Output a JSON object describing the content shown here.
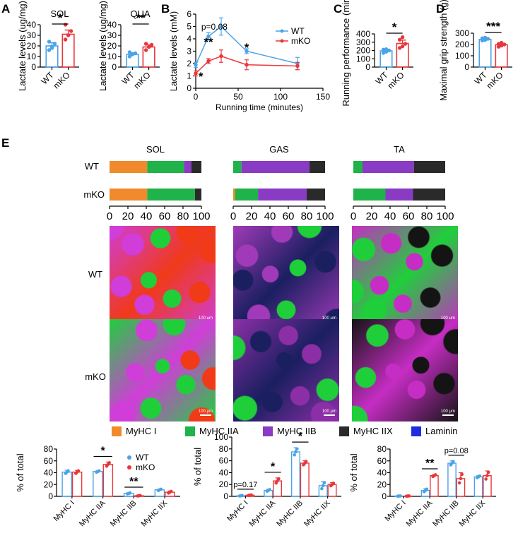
{
  "colors": {
    "wt": "#4aa3e8",
    "mko": "#e8373a",
    "myhc_i": "#f08a2c",
    "myhc_iia": "#1fb34a",
    "myhc_iib": "#8a3bc4",
    "myhc_iix": "#2a2a2a",
    "laminin": "#1f2de0"
  },
  "panel_labels": [
    "A",
    "B",
    "C",
    "D",
    "E"
  ],
  "legend_b": {
    "wt": "WT",
    "mko": "mKO"
  },
  "fiber_legend": [
    "MyHC I",
    "MyHC IIA",
    "MyHC IIB",
    "MyHC IIX",
    "Laminin"
  ],
  "muscle_titles": [
    "SOL",
    "GAS",
    "TA"
  ],
  "image_row_labels": [
    "WT",
    "mKO"
  ],
  "scalebar_label": "100 μm",
  "chart_data": [
    {
      "id": "A1",
      "type": "bar",
      "title": "SOL",
      "ylabel": "Lactate levels (ug/mg)",
      "ylim": [
        0,
        40
      ],
      "yticks": [
        0,
        10,
        20,
        30,
        40
      ],
      "categories": [
        "WT",
        "mKO"
      ],
      "values": [
        20,
        31
      ],
      "errors": [
        3,
        4
      ],
      "points": [
        [
          16,
          19,
          22,
          24,
          18
        ],
        [
          26,
          30,
          34,
          40
        ]
      ],
      "annotations": [
        {
          "text": "*",
          "from": 0,
          "to": 1
        }
      ]
    },
    {
      "id": "A2",
      "type": "bar",
      "title": "QUA",
      "ylabel": "Lactate levels (ug/mg)",
      "ylim": [
        0,
        40
      ],
      "yticks": [
        0,
        10,
        20,
        30,
        40
      ],
      "categories": [
        "WT",
        "mKO"
      ],
      "values": [
        12,
        19
      ],
      "errors": [
        1.5,
        2
      ],
      "points": [
        [
          10,
          12,
          13,
          14
        ],
        [
          16,
          19,
          21,
          22
        ]
      ],
      "annotations": [
        {
          "text": "**",
          "from": 0,
          "to": 1
        }
      ]
    },
    {
      "id": "B",
      "type": "line",
      "xlabel": "Running time (minutes)",
      "ylabel": "Lactate levels (mM)",
      "xlim": [
        0,
        150
      ],
      "ylim": [
        0,
        6
      ],
      "xticks": [
        0,
        50,
        100,
        150
      ],
      "yticks": [
        0,
        1,
        2,
        3,
        4,
        5,
        6
      ],
      "series": [
        {
          "name": "WT",
          "x": [
            0,
            15,
            30,
            60,
            120
          ],
          "y": [
            1.9,
            4.2,
            5.0,
            3.0,
            2.0
          ],
          "err": [
            0.2,
            0.3,
            0.7,
            0.2,
            0.5
          ]
        },
        {
          "name": "mKO",
          "x": [
            0,
            15,
            30,
            60,
            120
          ],
          "y": [
            1.2,
            2.2,
            2.6,
            1.9,
            1.8
          ],
          "err": [
            0.2,
            0.2,
            0.5,
            0.4,
            0.3
          ]
        }
      ],
      "annotations": [
        "p=0.08",
        "**",
        "*",
        "*"
      ]
    },
    {
      "id": "C",
      "type": "bar",
      "ylabel": "Running performance (min)",
      "ylim": [
        0,
        400
      ],
      "yticks": [
        0,
        100,
        200,
        300,
        400
      ],
      "categories": [
        "WT",
        "mKO"
      ],
      "values": [
        195,
        285
      ],
      "errors": [
        15,
        40
      ],
      "points": [
        [
          170,
          185,
          200,
          210,
          215
        ],
        [
          230,
          250,
          280,
          330,
          360
        ]
      ],
      "annotations": [
        {
          "text": "*",
          "from": 0,
          "to": 1
        }
      ]
    },
    {
      "id": "D",
      "type": "bar",
      "ylabel": "Maximal grip strength (g)",
      "ylim": [
        0,
        300
      ],
      "yticks": [
        0,
        100,
        200,
        300
      ],
      "categories": [
        "WT",
        "mKO"
      ],
      "values": [
        245,
        198
      ],
      "errors": [
        8,
        10
      ],
      "points": [
        [
          235,
          240,
          250,
          255,
          260
        ],
        [
          180,
          190,
          200,
          205,
          215
        ]
      ],
      "annotations": [
        {
          "text": "***",
          "from": 0,
          "to": 1
        }
      ]
    },
    {
      "id": "E-composition",
      "type": "bar",
      "orientation": "horizontal-stacked",
      "xlim": [
        0,
        100
      ],
      "xticks": [
        0,
        20,
        40,
        60,
        80,
        100
      ],
      "rows": [
        "WT",
        "mKO"
      ],
      "stack_order": [
        "MyHC I",
        "MyHC IIA",
        "MyHC IIB",
        "MyHC IIX"
      ],
      "muscles": [
        {
          "name": "SOL",
          "WT": [
            41,
            40,
            8,
            11
          ],
          "mKO": [
            41,
            52,
            0,
            7
          ]
        },
        {
          "name": "GAS",
          "WT": [
            0,
            9,
            74,
            17
          ],
          "mKO": [
            2,
            25,
            53,
            20
          ]
        },
        {
          "name": "TA",
          "WT": [
            0,
            10,
            56,
            34
          ],
          "mKO": [
            0,
            35,
            30,
            35
          ]
        }
      ]
    },
    {
      "id": "E-SOL",
      "type": "bar",
      "ylabel": "% of total",
      "ylim": [
        0,
        80
      ],
      "yticks": [
        0,
        20,
        40,
        60,
        80
      ],
      "categories": [
        "MyHC I",
        "MyHC IIA",
        "MyHC IIB",
        "MyHC IIX"
      ],
      "series": [
        {
          "name": "WT",
          "values": [
            41,
            42,
            5,
            11
          ],
          "errors": [
            3,
            1.5,
            1,
            1.5
          ]
        },
        {
          "name": "mKO",
          "values": [
            41,
            54,
            1,
            7
          ],
          "errors": [
            3,
            4,
            0.5,
            2
          ]
        }
      ],
      "annotations": [
        {
          "text": "*",
          "category": 1
        },
        {
          "text": "**",
          "category": 2
        }
      ]
    },
    {
      "id": "E-GAS",
      "type": "bar",
      "ylabel": "% of total",
      "ylim": [
        0,
        100
      ],
      "yticks": [
        0,
        20,
        40,
        60,
        80,
        100
      ],
      "categories": [
        "MyHC I",
        "MyHC IIA",
        "MyHC IIB",
        "MyHC IIX"
      ],
      "series": [
        {
          "name": "WT",
          "values": [
            1,
            10,
            75,
            18
          ],
          "errors": [
            0.5,
            2,
            7,
            7
          ]
        },
        {
          "name": "mKO",
          "values": [
            2,
            26,
            56,
            20
          ],
          "errors": [
            0.5,
            5,
            4,
            3
          ]
        }
      ],
      "annotations": [
        {
          "text": "p=0.17",
          "category": 0
        },
        {
          "text": "*",
          "category": 1
        },
        {
          "text": "*",
          "category": 2
        }
      ]
    },
    {
      "id": "E-TA",
      "type": "bar",
      "ylabel": "% of total",
      "ylim": [
        0,
        80
      ],
      "yticks": [
        0,
        20,
        40,
        60,
        80
      ],
      "categories": [
        "MyHC I",
        "MyHC IIA",
        "MyHC IIB",
        "MyHC IIX"
      ],
      "series": [
        {
          "name": "WT",
          "values": [
            0.5,
            10,
            56,
            33
          ],
          "errors": [
            0.3,
            3,
            4,
            2
          ]
        },
        {
          "name": "mKO",
          "values": [
            0.5,
            35,
            30,
            35
          ],
          "errors": [
            0.3,
            2,
            10,
            8
          ]
        }
      ],
      "annotations": [
        {
          "text": "**",
          "category": 1
        },
        {
          "text": "p=0.08",
          "category": 2
        }
      ]
    }
  ]
}
